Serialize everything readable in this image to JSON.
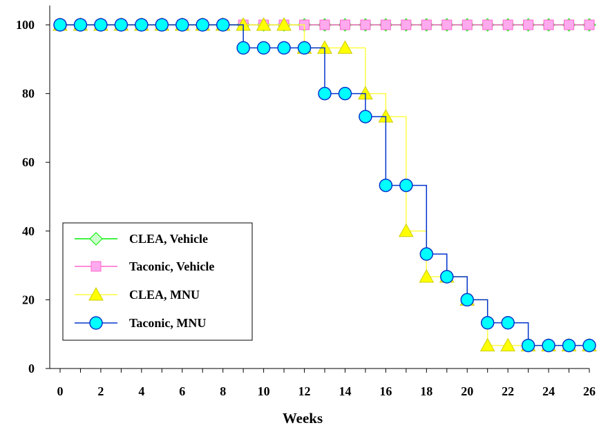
{
  "chart_data": {
    "type": "line",
    "title": "",
    "xlabel": "Weeks",
    "ylabel": "",
    "xlim": [
      0,
      26
    ],
    "ylim": [
      0,
      100
    ],
    "x_ticks": [
      0,
      2,
      4,
      6,
      8,
      10,
      12,
      14,
      16,
      18,
      20,
      22,
      24,
      26
    ],
    "x_ticks_unlabeled": [
      1,
      3,
      5,
      7,
      9,
      11,
      13,
      15,
      17,
      19,
      21,
      23,
      25
    ],
    "y_ticks": [
      0,
      20,
      40,
      60,
      80,
      100
    ],
    "grid": false,
    "legend_position": "lower-left",
    "x": [
      0,
      1,
      2,
      3,
      4,
      5,
      6,
      7,
      8,
      9,
      10,
      11,
      12,
      13,
      14,
      15,
      16,
      17,
      18,
      19,
      20,
      21,
      22,
      23,
      24,
      25,
      26
    ],
    "series": [
      {
        "name": "CLEA, Vehicle",
        "marker": "diamond",
        "color": "#00ee00",
        "fill": "#ccffcc",
        "values": [
          100,
          100,
          100,
          100,
          100,
          100,
          100,
          100,
          100,
          100,
          100,
          100,
          100,
          100,
          100,
          100,
          100,
          100,
          100,
          100,
          100,
          100,
          100,
          100,
          100,
          100,
          100
        ]
      },
      {
        "name": "Taconic, Vehicle",
        "marker": "square",
        "color": "#ff66cc",
        "fill": "#ffaaee",
        "values": [
          100,
          100,
          100,
          100,
          100,
          100,
          100,
          100,
          100,
          100,
          100,
          100,
          100,
          100,
          100,
          100,
          100,
          100,
          100,
          100,
          100,
          100,
          100,
          100,
          100,
          100,
          100
        ]
      },
      {
        "name": "CLEA, MNU",
        "marker": "triangle",
        "color": "#ffff44",
        "fill": "#ffff00",
        "values": [
          100,
          100,
          100,
          100,
          100,
          100,
          100,
          100,
          100,
          100,
          100,
          100,
          93.3,
          93.3,
          93.3,
          80,
          73.3,
          40,
          26.7,
          26.7,
          20,
          6.7,
          6.7,
          6.7,
          6.7,
          6.7,
          6.7
        ]
      },
      {
        "name": "Taconic, MNU",
        "marker": "circle",
        "color": "#0033cc",
        "fill": "#00ffff",
        "values": [
          100,
          100,
          100,
          100,
          100,
          100,
          100,
          100,
          100,
          93.3,
          93.3,
          93.3,
          93.3,
          80,
          80,
          73.3,
          53.3,
          53.3,
          33.3,
          26.7,
          20,
          13.3,
          13.3,
          6.7,
          6.7,
          6.7,
          6.7
        ]
      }
    ]
  }
}
